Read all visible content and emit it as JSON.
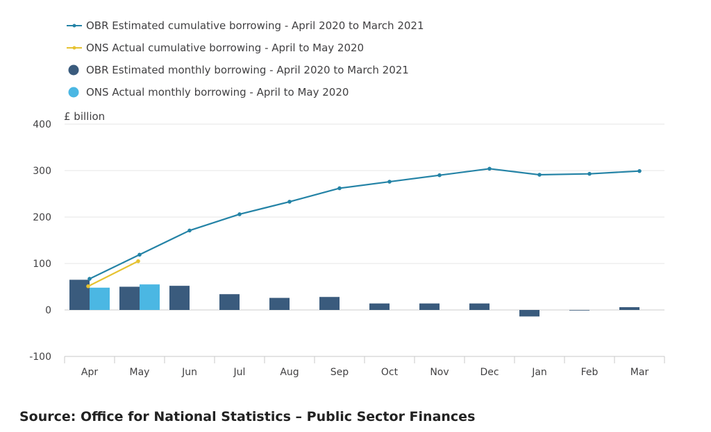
{
  "chart_data": {
    "type": "bar",
    "y_unit_label": "£ billion",
    "categories": [
      "Apr",
      "May",
      "Jun",
      "Jul",
      "Aug",
      "Sep",
      "Oct",
      "Nov",
      "Dec",
      "Jan",
      "Feb",
      "Mar"
    ],
    "ylim": [
      -100,
      400
    ],
    "yticks": [
      -100,
      0,
      100,
      200,
      300,
      400
    ],
    "grid": true,
    "legend_position": "top-left",
    "bar_series": [
      {
        "name": "OBR Estimated monthly borrowing - April 2020 to March 2021",
        "color": "#3a5b7d",
        "values": [
          65,
          50,
          52,
          34,
          26,
          28,
          14,
          14,
          14,
          -14,
          -1,
          6
        ]
      },
      {
        "name": "ONS Actual monthly borrowing - April to May 2020",
        "color": "#4bb7e3",
        "values": [
          48,
          55,
          null,
          null,
          null,
          null,
          null,
          null,
          null,
          null,
          null,
          null
        ]
      }
    ],
    "line_series": [
      {
        "name": "OBR Estimated cumulative borrowing - April 2020 to March 2021",
        "color": "#2483a6",
        "values": [
          67,
          119,
          171,
          206,
          233,
          262,
          276,
          290,
          304,
          291,
          293,
          299
        ]
      },
      {
        "name": "ONS Actual cumulative borrowing - April to May 2020",
        "color": "#e6c231",
        "values": [
          51,
          105,
          null,
          null,
          null,
          null,
          null,
          null,
          null,
          null,
          null,
          null
        ]
      }
    ]
  },
  "source": "Source: Office for National Statistics – Public Sector Finances"
}
